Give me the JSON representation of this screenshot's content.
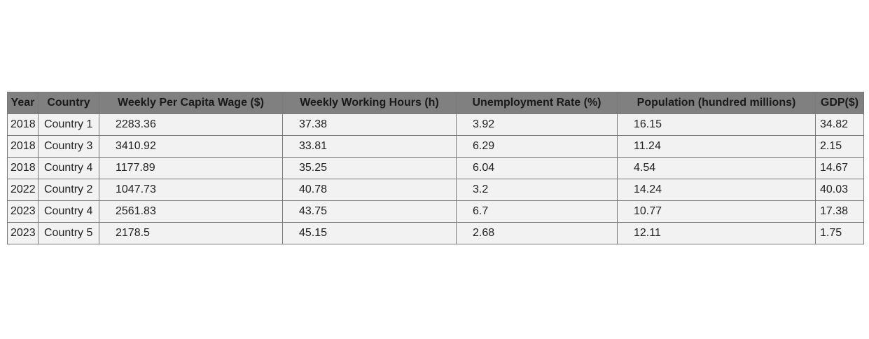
{
  "colors": {
    "header_bg": "#808080",
    "cell_bg": "#f2f2f2",
    "border": "#7a7a7a",
    "text": "#222222"
  },
  "chart_data": {
    "type": "table",
    "columns": [
      "Year",
      "Country",
      "Weekly Per Capita Wage ($)",
      "Weekly Working Hours (h)",
      "Unemployment Rate (%)",
      "Population (hundred millions)",
      "GDP($)"
    ],
    "rows": [
      [
        "2018",
        "Country 1",
        "2283.36",
        "37.38",
        "3.92",
        "16.15",
        "34.82"
      ],
      [
        "2018",
        "Country 3",
        "3410.92",
        "33.81",
        "6.29",
        "11.24",
        "2.15"
      ],
      [
        "2018",
        "Country 4",
        "1177.89",
        "35.25",
        "6.04",
        "4.54",
        "14.67"
      ],
      [
        "2022",
        "Country 2",
        "1047.73",
        "40.78",
        "3.2",
        "14.24",
        "40.03"
      ],
      [
        "2023",
        "Country 4",
        "2561.83",
        "43.75",
        "6.7",
        "10.77",
        "17.38"
      ],
      [
        "2023",
        "Country 5",
        "2178.5",
        "45.15",
        "2.68",
        "12.11",
        "1.75"
      ]
    ]
  }
}
